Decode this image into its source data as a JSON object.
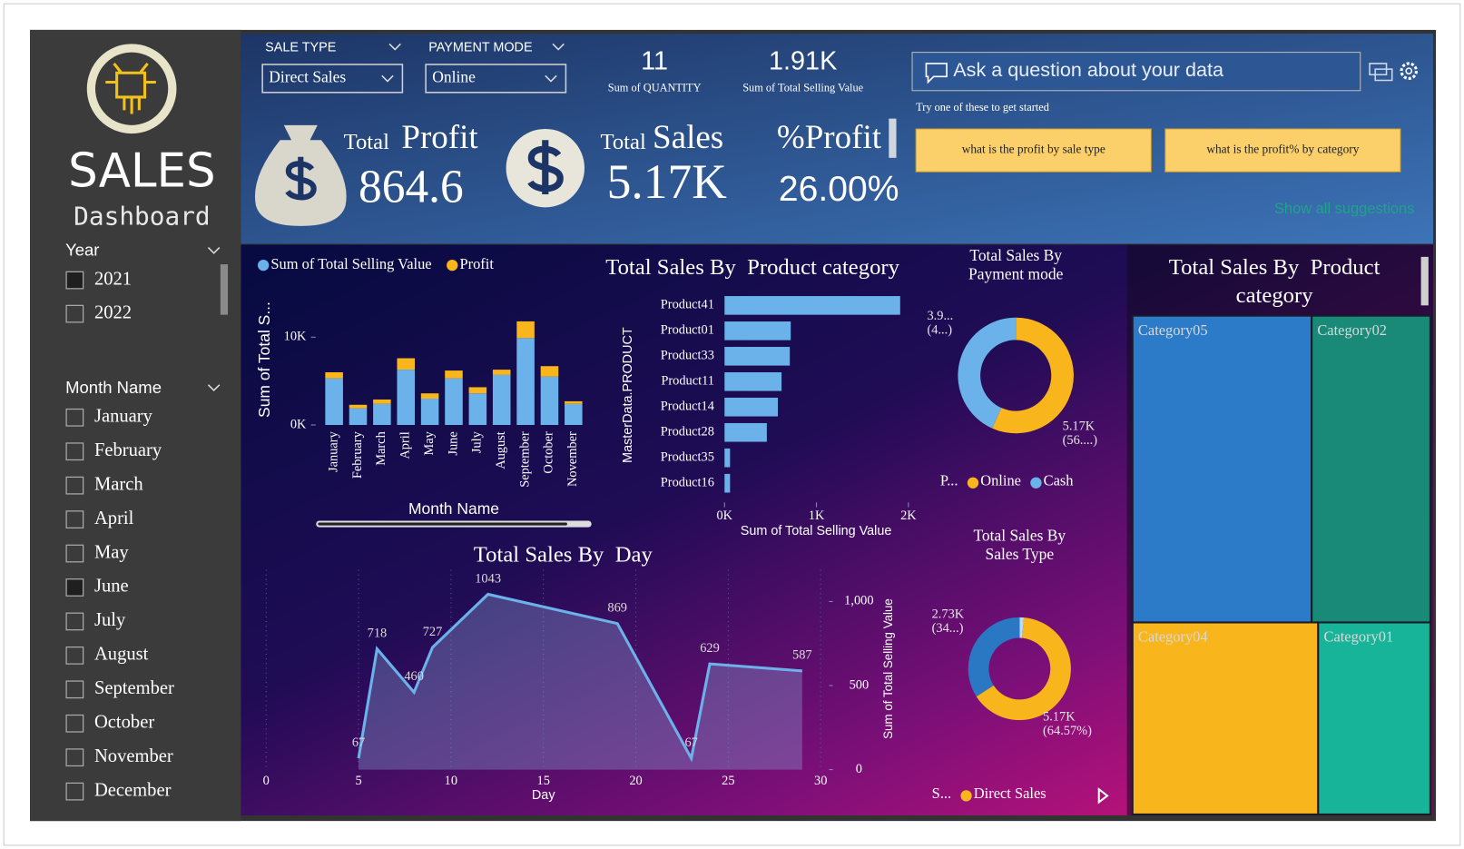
{
  "sidebar": {
    "title": "SALES",
    "subtitle": "Dashboard",
    "year_slicer": {
      "title": "Year",
      "items": [
        {
          "label": "2021",
          "selected": true
        },
        {
          "label": "2022",
          "selected": false
        }
      ]
    },
    "month_slicer": {
      "title": "Month Name",
      "items": [
        {
          "label": "January",
          "selected": false
        },
        {
          "label": "February",
          "selected": false
        },
        {
          "label": "March",
          "selected": false
        },
        {
          "label": "April",
          "selected": false
        },
        {
          "label": "May",
          "selected": false
        },
        {
          "label": "June",
          "selected": true
        },
        {
          "label": "July",
          "selected": false
        },
        {
          "label": "August",
          "selected": false
        },
        {
          "label": "September",
          "selected": false
        },
        {
          "label": "October",
          "selected": false
        },
        {
          "label": "November",
          "selected": false
        },
        {
          "label": "December",
          "selected": false
        }
      ]
    }
  },
  "filters": [
    {
      "label": "SALE TYPE",
      "value": "Direct Sales"
    },
    {
      "label": "PAYMENT MODE",
      "value": "Online"
    }
  ],
  "cards": [
    {
      "value": "11",
      "label": "Sum of QUANTITY"
    },
    {
      "value": "1.91K",
      "label": "Sum of Total Selling Value"
    }
  ],
  "kpis": [
    {
      "prefix": "Total",
      "title": "Profit",
      "value": "864.6"
    },
    {
      "prefix": "Total",
      "title": "Sales",
      "value": "5.17K"
    },
    {
      "title": "%Profit",
      "value": "26.00%"
    }
  ],
  "qna": {
    "placeholder": "Ask a question about your data",
    "hint": "Try one of these to get started",
    "suggestions": [
      "what is the profit by sale type",
      "what is the profit% by category"
    ],
    "show_all": "Show all suggestions"
  },
  "chart_data": [
    {
      "type": "stacked_bar",
      "categories": [
        "January",
        "February",
        "March",
        "April",
        "May",
        "June",
        "July",
        "August",
        "September",
        "October",
        "November"
      ],
      "series": [
        {
          "name": "Sum of Total Selling Value",
          "color": "#6cb2ea",
          "values": [
            5300,
            1900,
            2400,
            6300,
            3000,
            5300,
            3600,
            5700,
            9900,
            5500,
            2400
          ]
        },
        {
          "name": "Profit",
          "color": "#f9b51c",
          "values": [
            700,
            400,
            500,
            1300,
            600,
            900,
            700,
            600,
            1900,
            1200,
            300
          ]
        }
      ],
      "x_label": "Month Name",
      "y_label": "Sum of Total S...",
      "ylim": [
        0,
        14500
      ],
      "yticks": [
        {
          "value": 0,
          "label": "0K"
        },
        {
          "value": 10000,
          "label": "10K"
        }
      ]
    },
    {
      "type": "hbar",
      "title": "Total Sales By  Product category",
      "categories": [
        "Product41",
        "Product01",
        "Product33",
        "Product11",
        "Product14",
        "Product28",
        "Product35",
        "Product16"
      ],
      "values": [
        1910,
        720,
        710,
        620,
        580,
        460,
        60,
        60
      ],
      "color": "#6cb2ea",
      "x_label": "Sum of Total Selling Value",
      "y_label": "MasterData.PRODUCT",
      "xlim": [
        0,
        2000
      ],
      "xticks": [
        {
          "value": 0,
          "label": "0K"
        },
        {
          "value": 1000,
          "label": "1K"
        },
        {
          "value": 2000,
          "label": "2K"
        }
      ]
    },
    {
      "type": "donut",
      "title": "Total Sales By Payment mode",
      "legend_title": "P...",
      "categories": [
        "Online",
        "Cash"
      ],
      "values": [
        5170,
        3950
      ],
      "value_labels": [
        "5.17K (56....)",
        "3.9... (4...)"
      ],
      "colors": [
        "#f9b51c",
        "#6cb2ea"
      ]
    },
    {
      "type": "area",
      "title": "Total Sales By  Day",
      "x": [
        5,
        6,
        8,
        9,
        12,
        19,
        23,
        24,
        29
      ],
      "values": [
        67,
        718,
        460,
        727,
        1043,
        869,
        67,
        629,
        587
      ],
      "color": "#6cb2ea",
      "x_label": "Day",
      "y_label": "Sum of Total Selling Value",
      "xlim": [
        0,
        30
      ],
      "xticks": [
        0,
        5,
        10,
        15,
        20,
        25,
        30
      ],
      "ylim": [
        0,
        1200
      ],
      "yticks": [
        0,
        500,
        {
          "value": 1000,
          "label": "1,000"
        }
      ]
    },
    {
      "type": "donut",
      "title": "Total Sales By Sales Type",
      "legend_title": "S...",
      "categories": [
        null,
        "Direct Sales",
        null
      ],
      "values": [
        107,
        5170,
        2730
      ],
      "value_labels": [
        null,
        "5.17K (64.57%)",
        "2.73K (34...)"
      ],
      "colors": [
        "#b9dcf5",
        "#f9b51c",
        "#2a78c4"
      ]
    },
    {
      "type": "treemap",
      "title": "Total Sales By  Product category",
      "categories": [
        "Category05",
        "Category02",
        "Category04",
        "Category01"
      ],
      "values": [
        37,
        24.5,
        24,
        14.5
      ],
      "colors": [
        "#2b7bc8",
        "#1a8a78",
        "#f9b51c",
        "#18b49a"
      ]
    }
  ]
}
